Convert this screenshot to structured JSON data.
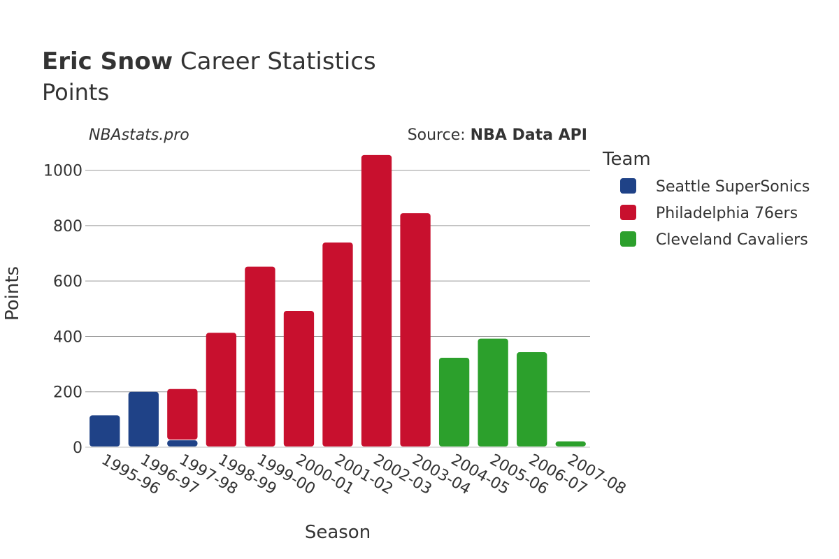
{
  "header": {
    "name": "Eric Snow",
    "title_rest": "Career Statistics",
    "subtitle": "Points"
  },
  "watermark": "NBAstats.pro",
  "source": {
    "prefix": "Source: ",
    "name": "NBA Data API"
  },
  "legend": {
    "title": "Team",
    "entries": [
      {
        "label": "Seattle SuperSonics",
        "color": "#1f4287"
      },
      {
        "label": "Philadelphia 76ers",
        "color": "#c8102e"
      },
      {
        "label": "Cleveland Cavaliers",
        "color": "#2ca02c"
      }
    ]
  },
  "chart_data": {
    "type": "bar",
    "stacked": true,
    "xlabel": "Season",
    "ylabel": "Points",
    "ylim": [
      0,
      1100
    ],
    "yticks": [
      0,
      200,
      400,
      600,
      800,
      1000
    ],
    "grid": true,
    "legend_position": "right",
    "categories": [
      "1995-96",
      "1996-97",
      "1997-98",
      "1998-99",
      "1999-00",
      "2000-01",
      "2001-02",
      "2002-03",
      "2003-04",
      "2004-05",
      "2005-06",
      "2006-07",
      "2007-08"
    ],
    "series": [
      {
        "name": "Seattle SuperSonics",
        "color": "#1f4287",
        "values": [
          115,
          200,
          25,
          0,
          0,
          0,
          0,
          0,
          0,
          0,
          0,
          0,
          0
        ]
      },
      {
        "name": "Philadelphia 76ers",
        "color": "#c8102e",
        "values": [
          0,
          0,
          185,
          413,
          652,
          492,
          739,
          1055,
          845,
          0,
          0,
          0,
          0
        ]
      },
      {
        "name": "Cleveland Cavaliers",
        "color": "#2ca02c",
        "values": [
          0,
          0,
          0,
          0,
          0,
          0,
          0,
          0,
          0,
          323,
          392,
          343,
          21
        ]
      }
    ]
  }
}
